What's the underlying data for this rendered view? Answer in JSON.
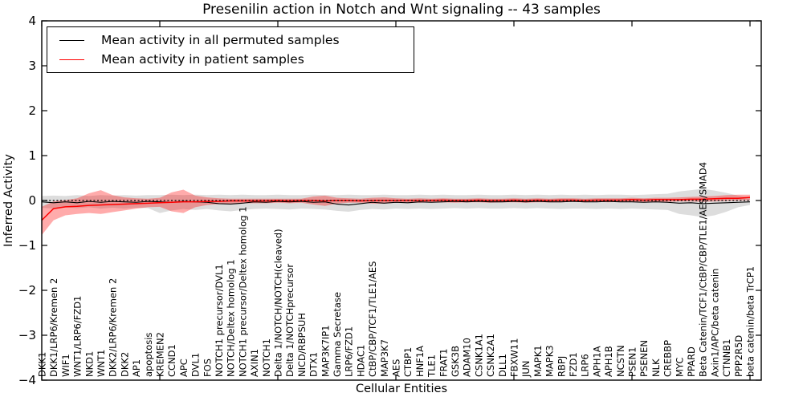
{
  "figure": {
    "title": "Presenilin action in Notch and Wnt signaling -- 43 samples",
    "xlabel": "Cellular Entities",
    "ylabel": "Inferred Activity"
  },
  "legend": {
    "entries": [
      {
        "label": "Mean activity in all permuted samples",
        "color": "#000000"
      },
      {
        "label": "Mean activity in patient samples",
        "color": "#ff0000"
      }
    ]
  },
  "chart_data": {
    "type": "line",
    "title": "Presenilin action in Notch and Wnt signaling -- 43 samples",
    "xlabel": "Cellular Entities",
    "ylabel": "Inferred Activity",
    "ylim": [
      -4,
      4
    ],
    "yticks": [
      -4,
      -3,
      -2,
      -1,
      0,
      1,
      2,
      3,
      4
    ],
    "x_major_tick_every": 10,
    "grid": false,
    "legend_position": "upper left",
    "zero_line": {
      "value": 0,
      "style": "dotted",
      "color": "#000000"
    },
    "categories": [
      "DKK1",
      "DKK1/LRP6/Kremen 2",
      "WIF1",
      "WNT1/LRP6/FZD1",
      "NKD1",
      "WNT1",
      "DKK2/LRP6/Kremen 2",
      "DKK2",
      "AP1",
      "apoptosis",
      "KREMEN2",
      "CCND1",
      "APC",
      "DVL1",
      "FOS",
      "NOTCH1 precursor/DVL1",
      "NOTCH/Deltex homolog 1",
      "NOTCH1 precursor/Deltex homolog 1",
      "AXIN1",
      "NOTCH1",
      "Delta 1/NOTCH/NOTCH(cleaved)",
      "Delta 1/NOTCHprecursor",
      "NICD/RBPSUH",
      "DTX1",
      "MAP3K7IP1",
      "Gamma Secretase",
      "LRP6/FZD1",
      "HDAC1",
      "CtBP/CBP/TCF1/TLE1/AES",
      "MAP3K7",
      "AES",
      "CTBP1",
      "HNF1A",
      "TLE1",
      "FRAT1",
      "GSK3B",
      "ADAM10",
      "CSNK1A1",
      "CSNK2A1",
      "DLL1",
      "FBXW11",
      "JUN",
      "MAPK1",
      "MAPK3",
      "RBPJ",
      "FZD1",
      "LRP6",
      "APH1A",
      "APH1B",
      "NCSTN",
      "PSEN1",
      "PSENEN",
      "NLK",
      "CREBBP",
      "MYC",
      "PPARD",
      "Beta Catenin/TCF1/CtBP/CBP/TLE1/AES/SMAD4",
      "Axin1/APC/beta catenin",
      "CTNNB1",
      "PPP2R5D",
      "beta catenin/beta TrCP1"
    ],
    "series": [
      {
        "name": "Mean activity in all permuted samples",
        "color": "#000000",
        "line_width": 1.1,
        "values": [
          -0.03,
          -0.05,
          -0.03,
          -0.05,
          -0.02,
          -0.04,
          -0.02,
          -0.03,
          -0.04,
          -0.02,
          -0.03,
          -0.04,
          -0.02,
          -0.03,
          -0.04,
          -0.07,
          -0.08,
          -0.06,
          -0.03,
          -0.04,
          -0.02,
          -0.03,
          -0.02,
          -0.04,
          -0.03,
          -0.08,
          -0.1,
          -0.07,
          -0.04,
          -0.06,
          -0.04,
          -0.05,
          -0.03,
          -0.04,
          -0.03,
          -0.02,
          -0.03,
          -0.02,
          -0.03,
          -0.03,
          -0.02,
          -0.03,
          -0.02,
          -0.03,
          -0.03,
          -0.02,
          -0.03,
          -0.03,
          -0.02,
          -0.03,
          -0.03,
          -0.04,
          -0.03,
          -0.04,
          -0.06,
          -0.05,
          -0.07,
          -0.06,
          -0.05,
          -0.04,
          -0.03
        ],
        "band": {
          "color": "#aaaaaa",
          "opacity": 0.4,
          "low": [
            -0.16,
            -0.18,
            -0.15,
            -0.17,
            -0.15,
            -0.18,
            -0.16,
            -0.18,
            -0.16,
            -0.17,
            -0.28,
            -0.22,
            -0.19,
            -0.21,
            -0.19,
            -0.22,
            -0.24,
            -0.21,
            -0.19,
            -0.18,
            -0.19,
            -0.2,
            -0.18,
            -0.19,
            -0.2,
            -0.23,
            -0.25,
            -0.21,
            -0.19,
            -0.2,
            -0.18,
            -0.19,
            -0.18,
            -0.19,
            -0.18,
            -0.17,
            -0.18,
            -0.17,
            -0.18,
            -0.18,
            -0.17,
            -0.18,
            -0.17,
            -0.18,
            -0.19,
            -0.18,
            -0.18,
            -0.19,
            -0.18,
            -0.19,
            -0.18,
            -0.19,
            -0.2,
            -0.21,
            -0.3,
            -0.33,
            -0.37,
            -0.33,
            -0.25,
            -0.15,
            -0.1
          ],
          "high": [
            0.1,
            0.11,
            0.1,
            0.12,
            0.1,
            0.12,
            0.11,
            0.12,
            0.11,
            0.12,
            0.12,
            0.13,
            0.12,
            0.13,
            0.12,
            0.13,
            0.12,
            0.13,
            0.12,
            0.12,
            0.13,
            0.12,
            0.12,
            0.13,
            0.12,
            0.12,
            0.13,
            0.12,
            0.12,
            0.13,
            0.12,
            0.12,
            0.13,
            0.12,
            0.13,
            0.12,
            0.12,
            0.13,
            0.12,
            0.12,
            0.13,
            0.12,
            0.13,
            0.12,
            0.13,
            0.12,
            0.13,
            0.12,
            0.13,
            0.13,
            0.12,
            0.13,
            0.14,
            0.15,
            0.2,
            0.23,
            0.26,
            0.22,
            0.17,
            0.11,
            0.07
          ]
        }
      },
      {
        "name": "Mean activity in patient samples",
        "color": "#ff0000",
        "line_width": 1.5,
        "values": [
          -0.44,
          -0.18,
          -0.14,
          -0.13,
          -0.11,
          -0.1,
          -0.09,
          -0.08,
          -0.07,
          -0.06,
          -0.05,
          -0.04,
          -0.03,
          -0.03,
          -0.02,
          -0.02,
          -0.01,
          -0.01,
          -0.01,
          -0.01,
          0.0,
          -0.01,
          0.0,
          0.0,
          -0.01,
          0.0,
          0.0,
          -0.01,
          0.0,
          0.0,
          0.0,
          0.0,
          0.0,
          0.0,
          0.01,
          0.0,
          0.0,
          0.01,
          0.0,
          0.0,
          0.01,
          0.0,
          0.01,
          0.0,
          0.01,
          0.01,
          0.0,
          0.01,
          0.01,
          0.01,
          0.02,
          0.01,
          0.02,
          0.02,
          0.02,
          0.03,
          0.03,
          0.04,
          0.05,
          0.05,
          0.07
        ],
        "band": {
          "color": "#ff0000",
          "opacity": 0.33,
          "low": [
            -0.77,
            -0.44,
            -0.33,
            -0.3,
            -0.28,
            -0.3,
            -0.26,
            -0.22,
            -0.18,
            -0.15,
            -0.14,
            -0.24,
            -0.28,
            -0.15,
            -0.1,
            -0.08,
            -0.07,
            -0.06,
            -0.06,
            -0.06,
            -0.05,
            -0.06,
            -0.05,
            -0.09,
            -0.12,
            -0.07,
            -0.05,
            -0.05,
            -0.07,
            -0.07,
            -0.05,
            -0.04,
            -0.05,
            -0.04,
            -0.04,
            -0.05,
            -0.04,
            -0.04,
            -0.05,
            -0.04,
            -0.04,
            -0.05,
            -0.04,
            -0.04,
            -0.04,
            -0.03,
            -0.04,
            -0.03,
            -0.04,
            -0.03,
            -0.03,
            -0.04,
            -0.03,
            -0.03,
            -0.02,
            -0.02,
            -0.03,
            -0.02,
            -0.01,
            0.0,
            0.01
          ],
          "high": [
            -0.14,
            -0.02,
            0.01,
            0.05,
            0.16,
            0.23,
            0.12,
            0.07,
            0.05,
            0.04,
            0.06,
            0.18,
            0.24,
            0.11,
            0.07,
            0.05,
            0.04,
            0.04,
            0.04,
            0.04,
            0.04,
            0.04,
            0.04,
            0.09,
            0.11,
            0.06,
            0.05,
            0.04,
            0.06,
            0.07,
            0.05,
            0.04,
            0.05,
            0.04,
            0.05,
            0.04,
            0.04,
            0.05,
            0.04,
            0.04,
            0.05,
            0.04,
            0.05,
            0.04,
            0.05,
            0.05,
            0.04,
            0.05,
            0.05,
            0.05,
            0.06,
            0.05,
            0.06,
            0.06,
            0.07,
            0.08,
            0.09,
            0.1,
            0.12,
            0.13,
            0.13
          ]
        }
      }
    ]
  }
}
